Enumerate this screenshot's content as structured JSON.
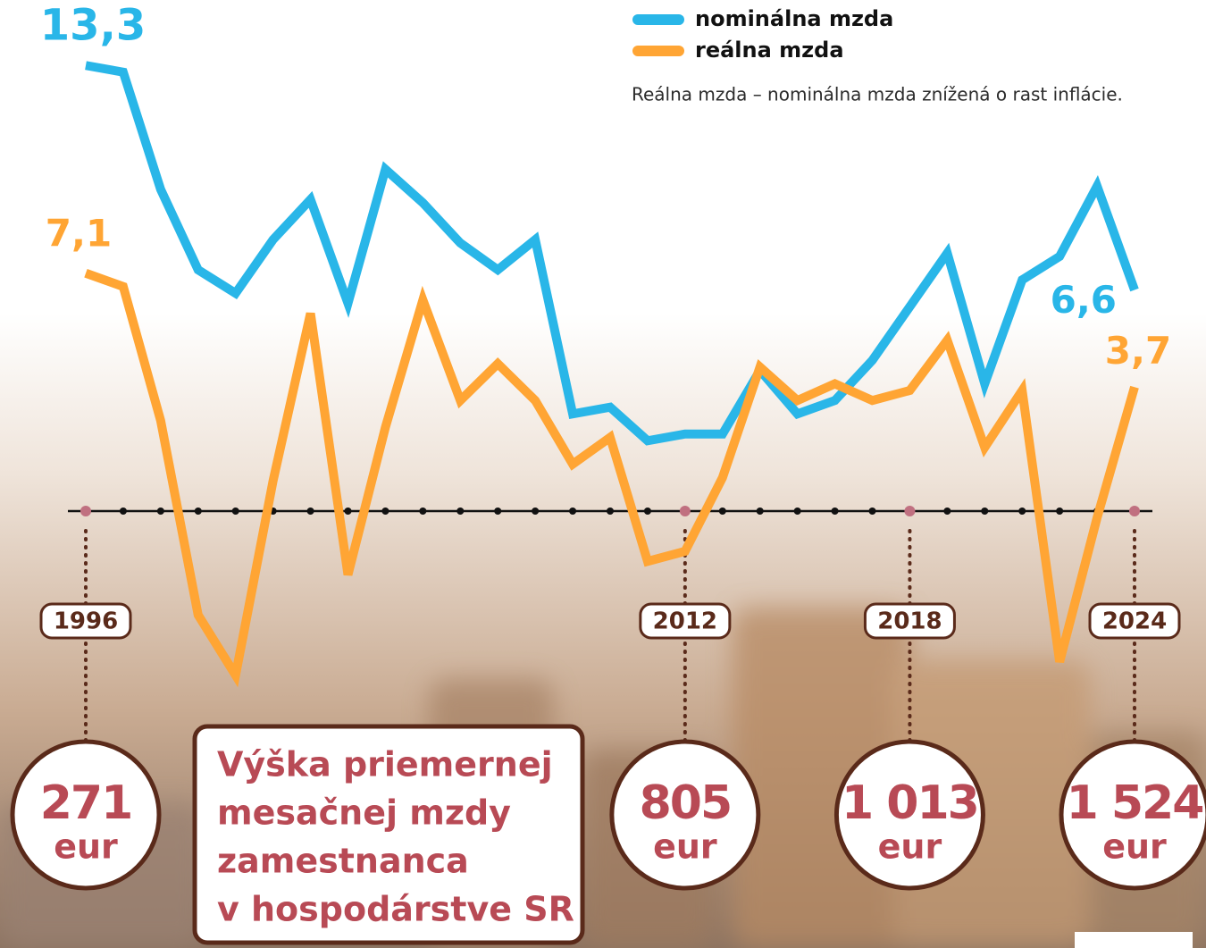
{
  "chart_data": {
    "type": "line",
    "categories": [
      "1996",
      null,
      null,
      null,
      null,
      null,
      null,
      null,
      null,
      null,
      null,
      null,
      null,
      null,
      null,
      null,
      "2012",
      null,
      null,
      null,
      null,
      null,
      "2018",
      null,
      null,
      null,
      null,
      null,
      "2024"
    ],
    "series": [
      {
        "name": "nominálna mzda",
        "color": "#29b6e8",
        "values": [
          13.3,
          13.1,
          9.6,
          7.2,
          6.5,
          8.1,
          9.3,
          6.2,
          10.2,
          9.2,
          8.0,
          7.2,
          8.1,
          2.9,
          3.1,
          2.1,
          2.3,
          2.3,
          4.2,
          2.9,
          3.3,
          4.5,
          6.1,
          7.7,
          3.8,
          6.9,
          7.6,
          9.7,
          6.6
        ],
        "value_labels": [
          "13,3",
          null,
          null,
          null,
          null,
          null,
          null,
          null,
          null,
          null,
          null,
          null,
          null,
          null,
          null,
          null,
          null,
          null,
          null,
          null,
          null,
          null,
          null,
          null,
          null,
          null,
          null,
          null,
          "6,6"
        ]
      },
      {
        "name": "reálna mzda",
        "color": "#ffa534",
        "values": [
          7.1,
          6.7,
          2.7,
          -3.1,
          -4.9,
          0.9,
          5.9,
          -1.9,
          2.5,
          6.3,
          3.3,
          4.4,
          3.3,
          1.4,
          2.2,
          -1.5,
          -1.2,
          1.0,
          4.3,
          3.3,
          3.8,
          3.3,
          3.6,
          5.1,
          1.9,
          3.6,
          -4.5,
          -0.2,
          3.7
        ],
        "value_labels": [
          "7,1",
          null,
          null,
          null,
          null,
          null,
          null,
          null,
          null,
          null,
          null,
          null,
          null,
          null,
          null,
          null,
          null,
          null,
          null,
          null,
          null,
          null,
          null,
          null,
          null,
          null,
          null,
          null,
          "3,7"
        ]
      }
    ],
    "ylim": [
      -6,
      14
    ],
    "note": "Reálna mzda – nominálna mzda znížená o rast inflácie.",
    "wage_labels": [
      {
        "amount": "271",
        "unit": "eur"
      },
      null,
      null,
      null,
      null,
      null,
      null,
      null,
      null,
      null,
      null,
      null,
      null,
      null,
      null,
      null,
      {
        "amount": "805",
        "unit": "eur"
      },
      null,
      null,
      null,
      null,
      null,
      {
        "amount": "1 013",
        "unit": "eur"
      },
      null,
      null,
      null,
      null,
      null,
      {
        "amount": "1 524",
        "unit": "eur"
      }
    ],
    "title_lines": [
      "Výška priemernej",
      "mesačnej mzdy",
      "zamestnanca",
      "v hospodárstve SR"
    ]
  }
}
